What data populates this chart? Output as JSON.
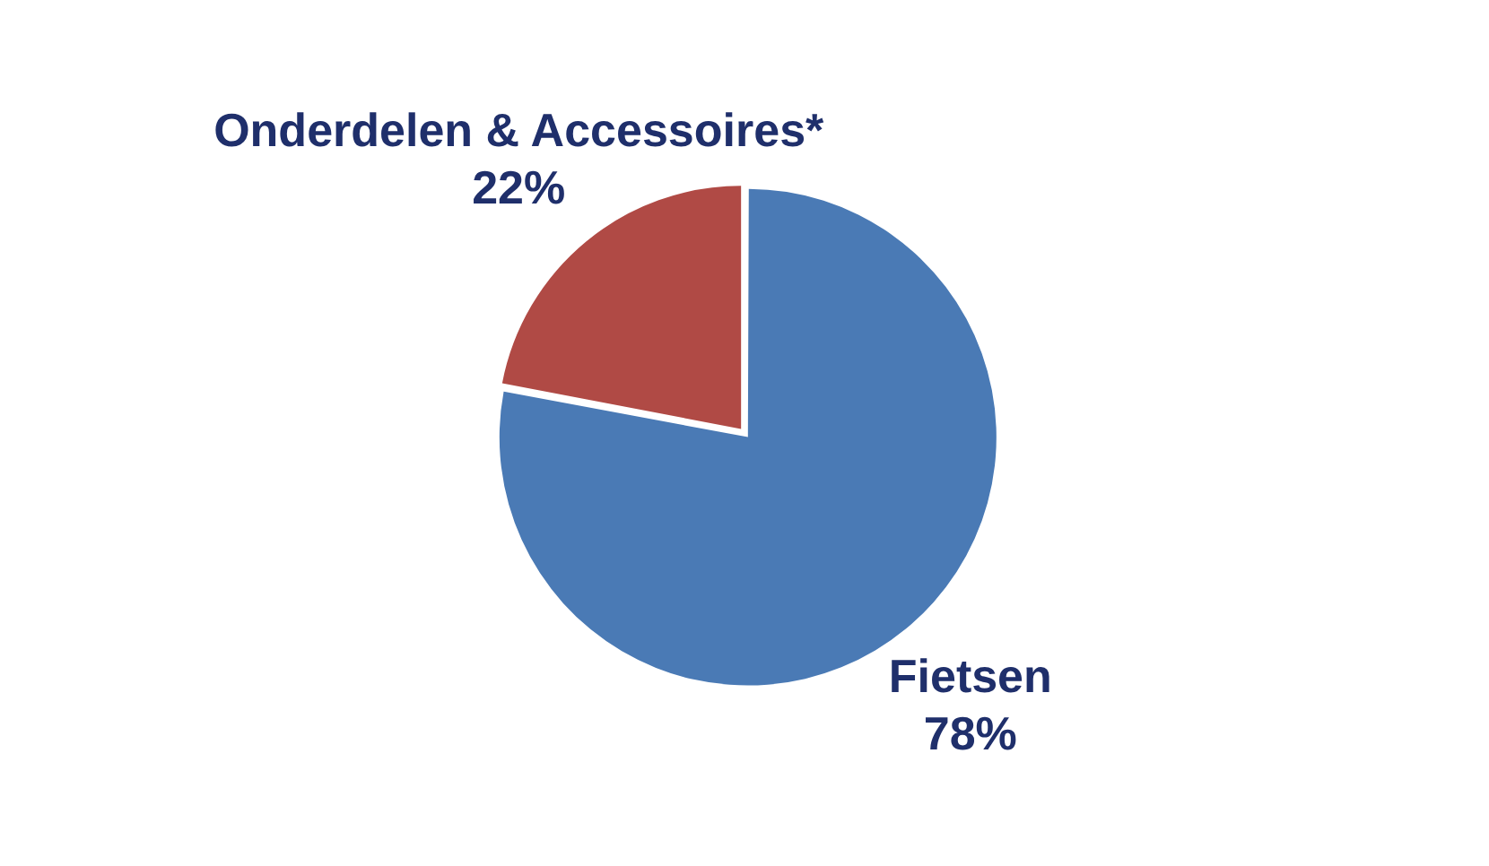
{
  "chart_data": {
    "type": "pie",
    "categories": [
      "Onderdelen & Accessoires*",
      "Fietsen"
    ],
    "values": [
      22,
      78
    ],
    "colors": [
      "#b04a45",
      "#4a7ab5"
    ],
    "value_labels": [
      "22%",
      "78%"
    ],
    "legend": false
  }
}
